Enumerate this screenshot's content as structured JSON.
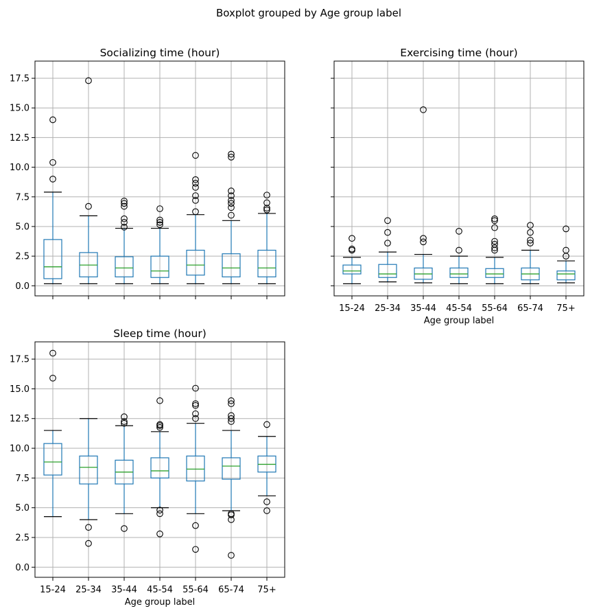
{
  "suptitle": "Boxplot grouped by Age group label",
  "colors": {
    "box": "#1f77b4",
    "median": "#2ca02c",
    "grid": "#b0b0b0",
    "outlier": "#000000"
  },
  "chart_data": [
    {
      "type": "boxplot",
      "title": "Socializing time (hour)",
      "xlabel": "",
      "ylim": [
        -0.85,
        18.95
      ],
      "yticks": [
        "0.0",
        "2.5",
        "5.0",
        "7.5",
        "10.0",
        "12.5",
        "15.0",
        "17.5"
      ],
      "categories": [
        "15-24",
        "25-34",
        "35-44",
        "45-54",
        "55-64",
        "65-74",
        "75+"
      ],
      "show_xticklabels": false,
      "show_yticklabels": true,
      "grid": true,
      "boxes": [
        {
          "whislo": 0.17,
          "q1": 0.6,
          "med": 1.6,
          "q3": 3.9,
          "whishi": 7.9,
          "fliers": [
            9.0,
            10.4,
            14.0
          ]
        },
        {
          "whislo": 0.17,
          "q1": 0.75,
          "med": 1.75,
          "q3": 2.8,
          "whishi": 5.9,
          "fliers": [
            6.7,
            17.3
          ]
        },
        {
          "whislo": 0.17,
          "q1": 0.75,
          "med": 1.5,
          "q3": 2.45,
          "whishi": 4.85,
          "fliers": [
            4.95,
            5.35,
            5.65,
            6.7,
            6.95,
            7.15
          ]
        },
        {
          "whislo": 0.17,
          "q1": 0.7,
          "med": 1.25,
          "q3": 2.5,
          "whishi": 4.85,
          "fliers": [
            5.15,
            5.35,
            5.55,
            6.5
          ]
        },
        {
          "whislo": 0.17,
          "q1": 0.9,
          "med": 1.75,
          "q3": 3.0,
          "whishi": 6.0,
          "fliers": [
            6.25,
            7.2,
            7.6,
            8.3,
            8.65,
            8.95,
            11.0
          ]
        },
        {
          "whislo": 0.17,
          "q1": 0.75,
          "med": 1.5,
          "q3": 2.7,
          "whishi": 5.5,
          "fliers": [
            5.95,
            6.6,
            6.95,
            7.2,
            7.6,
            8.0,
            10.85,
            11.1
          ]
        },
        {
          "whislo": 0.17,
          "q1": 0.75,
          "med": 1.5,
          "q3": 3.0,
          "whishi": 6.1,
          "fliers": [
            6.4,
            6.55,
            7.0,
            7.65
          ]
        }
      ]
    },
    {
      "type": "boxplot",
      "title": "Exercising time (hour)",
      "xlabel": "Age group label",
      "ylim": [
        -0.85,
        18.95
      ],
      "yticks": [
        "0.0",
        "2.5",
        "5.0",
        "7.5",
        "10.0",
        "12.5",
        "15.0",
        "17.5"
      ],
      "categories": [
        "15-24",
        "25-34",
        "35-44",
        "45-54",
        "55-64",
        "65-74",
        "75+"
      ],
      "show_xticklabels": true,
      "show_yticklabels": false,
      "grid": true,
      "boxes": [
        {
          "whislo": 0.17,
          "q1": 1.0,
          "med": 1.25,
          "q3": 1.75,
          "whishi": 2.4,
          "fliers": [
            3.0,
            3.1,
            4.0
          ]
        },
        {
          "whislo": 0.33,
          "q1": 0.7,
          "med": 1.0,
          "q3": 1.8,
          "whishi": 2.85,
          "fliers": [
            3.6,
            4.5,
            5.5
          ]
        },
        {
          "whislo": 0.25,
          "q1": 0.55,
          "med": 1.0,
          "q3": 1.5,
          "whishi": 2.65,
          "fliers": [
            3.7,
            4.0,
            14.85
          ]
        },
        {
          "whislo": 0.17,
          "q1": 0.7,
          "med": 1.0,
          "q3": 1.5,
          "whishi": 2.5,
          "fliers": [
            3.0,
            4.6
          ]
        },
        {
          "whislo": 0.17,
          "q1": 0.7,
          "med": 1.0,
          "q3": 1.45,
          "whishi": 2.4,
          "fliers": [
            3.0,
            3.2,
            3.5,
            3.75,
            4.9,
            5.5,
            5.65
          ]
        },
        {
          "whislo": 0.17,
          "q1": 0.5,
          "med": 1.0,
          "q3": 1.5,
          "whishi": 3.0,
          "fliers": [
            3.6,
            3.85,
            4.5,
            5.1
          ]
        },
        {
          "whislo": 0.25,
          "q1": 0.5,
          "med": 1.0,
          "q3": 1.25,
          "whishi": 2.1,
          "fliers": [
            2.5,
            3.0,
            4.8
          ]
        }
      ]
    },
    {
      "type": "boxplot",
      "title": "Sleep time (hour)",
      "xlabel": "Age group label",
      "ylim": [
        -0.85,
        18.95
      ],
      "yticks": [
        "0.0",
        "2.5",
        "5.0",
        "7.5",
        "10.0",
        "12.5",
        "15.0",
        "17.5"
      ],
      "categories": [
        "15-24",
        "25-34",
        "35-44",
        "45-54",
        "55-64",
        "65-74",
        "75+"
      ],
      "show_xticklabels": true,
      "show_yticklabels": true,
      "grid": true,
      "boxes": [
        {
          "whislo": 4.25,
          "q1": 7.75,
          "med": 8.85,
          "q3": 10.4,
          "whishi": 11.5,
          "fliers": [
            15.9,
            18.0
          ]
        },
        {
          "whislo": 4.0,
          "q1": 7.0,
          "med": 8.4,
          "q3": 9.35,
          "whishi": 12.5,
          "fliers": [
            3.35,
            2.0
          ]
        },
        {
          "whislo": 4.5,
          "q1": 7.0,
          "med": 8.0,
          "q3": 9.0,
          "whishi": 11.9,
          "fliers": [
            3.25,
            12.1,
            12.25,
            12.65
          ]
        },
        {
          "whislo": 5.0,
          "q1": 7.5,
          "med": 8.1,
          "q3": 9.2,
          "whishi": 11.4,
          "fliers": [
            4.8,
            4.5,
            2.8,
            11.75,
            11.9,
            12.0,
            14.0
          ]
        },
        {
          "whislo": 4.5,
          "q1": 7.25,
          "med": 8.25,
          "q3": 9.35,
          "whishi": 12.1,
          "fliers": [
            3.5,
            1.5,
            12.5,
            12.9,
            13.6,
            13.75,
            15.05
          ]
        },
        {
          "whislo": 4.75,
          "q1": 7.4,
          "med": 8.5,
          "q3": 9.2,
          "whishi": 11.5,
          "fliers": [
            4.5,
            4.4,
            4.0,
            1.0,
            12.25,
            12.5,
            12.75,
            13.75,
            14.0
          ]
        },
        {
          "whislo": 6.0,
          "q1": 8.0,
          "med": 8.65,
          "q3": 9.35,
          "whishi": 11.0,
          "fliers": [
            5.5,
            4.75,
            12.0
          ]
        }
      ]
    }
  ]
}
